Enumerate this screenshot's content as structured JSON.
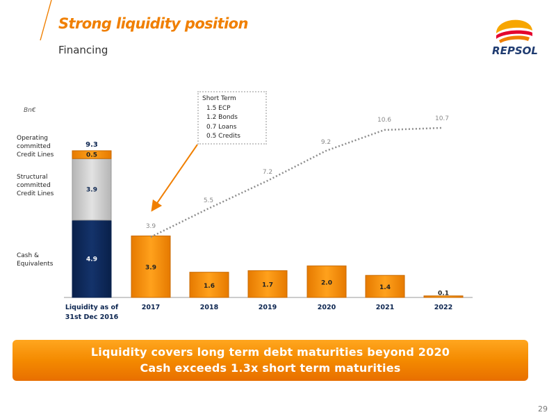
{
  "header": {
    "title": "Strong liquidity position",
    "subtitle": "Financing",
    "logo_text": "REPSOL",
    "page_number": "29"
  },
  "colors": {
    "accent": "#f07f00",
    "cash": "#0c2550",
    "structural": "#c8c8c8",
    "operating": "#f39200",
    "line": "#8c8c8c"
  },
  "unit_label": "Bn€",
  "side_labels": [
    {
      "text": "Operating committed Credit Lines",
      "lines": [
        "Operating",
        "committed",
        "Credit Lines"
      ]
    },
    {
      "text": "Structural committed Credit Lines",
      "lines": [
        "Structural",
        "committed",
        "Credit Lines"
      ]
    },
    {
      "text": "Cash & Equivalents",
      "lines": [
        "Cash &",
        "Equivalents"
      ]
    }
  ],
  "callout": {
    "heading": "Short Term",
    "items": [
      "1.5 ECP",
      "1.2 Bonds",
      "0.7 Loans",
      "0.5 Credits"
    ]
  },
  "chart_data": {
    "type": "bar",
    "categories": [
      "Liquidity as of 31st Dec 2016",
      "2017",
      "2018",
      "2019",
      "2020",
      "2021",
      "2022"
    ],
    "category_lines": [
      [
        "Liquidity as of",
        "31st Dec 2016"
      ],
      [
        "2017"
      ],
      [
        "2018"
      ],
      [
        "2019"
      ],
      [
        "2020"
      ],
      [
        "2021"
      ],
      [
        "2022"
      ]
    ],
    "liquidity_stack": [
      {
        "name": "Cash & Equivalents",
        "value": 4.9,
        "label": "4.9"
      },
      {
        "name": "Structural committed Credit Lines",
        "value": 3.9,
        "label": "3.9"
      },
      {
        "name": "Operating committed Credit Lines",
        "value": 0.5,
        "label": "0.5"
      }
    ],
    "liquidity_total": 9.3,
    "liquidity_total_label": "9.3",
    "maturities": [
      {
        "year": "2017",
        "value": 3.9,
        "label": "3.9"
      },
      {
        "year": "2018",
        "value": 1.6,
        "label": "1.6"
      },
      {
        "year": "2019",
        "value": 1.7,
        "label": "1.7"
      },
      {
        "year": "2020",
        "value": 2.0,
        "label": "2.0"
      },
      {
        "year": "2021",
        "value": 1.4,
        "label": "1.4"
      },
      {
        "year": "2022",
        "value": 0.1,
        "label": "0.1"
      }
    ],
    "cumulative": [
      {
        "year": "2017",
        "value": 3.9,
        "label": "3.9"
      },
      {
        "year": "2018",
        "value": 5.5,
        "label": "5.5"
      },
      {
        "year": "2019",
        "value": 7.2,
        "label": "7.2"
      },
      {
        "year": "2020",
        "value": 9.2,
        "label": "9.2"
      },
      {
        "year": "2021",
        "value": 10.6,
        "label": "10.6"
      },
      {
        "year": "2022",
        "value": 10.7,
        "label": "10.7"
      }
    ],
    "ylim": [
      0,
      11
    ],
    "grid": false
  },
  "banner": {
    "line1": "Liquidity covers long term debt maturities beyond 2020",
    "line2": "Cash exceeds 1.3x short term maturities"
  }
}
